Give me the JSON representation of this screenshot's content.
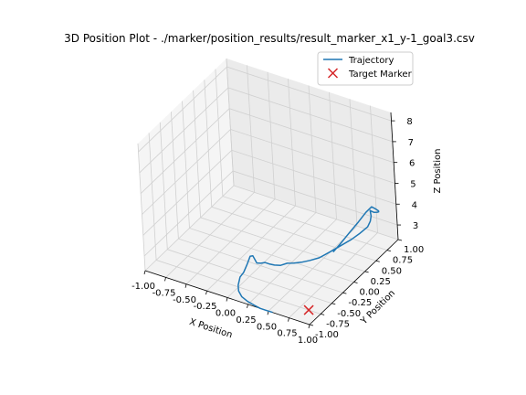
{
  "chart_data": {
    "type": "line",
    "projection": "3d",
    "title": "3D Position Plot - ./marker/position_results/result_marker_x1_y-1_goal3.csv",
    "xlabel": "X Position",
    "ylabel": "Y Position",
    "zlabel": "Z Position",
    "xlim": [
      -1.0,
      1.0
    ],
    "ylim": [
      -1.0,
      1.0
    ],
    "zlim": [
      2.3,
      8.4
    ],
    "x_ticks": [
      "-1.00",
      "-0.75",
      "-0.50",
      "-0.25",
      "0.00",
      "0.25",
      "0.50",
      "0.75",
      "1.00"
    ],
    "y_ticks": [
      "-1.00",
      "-0.75",
      "-0.50",
      "-0.25",
      "0.00",
      "0.25",
      "0.50",
      "0.75",
      "1.00"
    ],
    "z_ticks": [
      "3",
      "4",
      "5",
      "6",
      "7",
      "8"
    ],
    "grid": true,
    "legend_position": "upper right",
    "series": [
      {
        "name": "Trajectory",
        "kind": "line",
        "color": "#1f77b4",
        "x": [
          0.55,
          0.53,
          0.48,
          0.4,
          0.32,
          0.22,
          0.12,
          0.04,
          -0.02,
          -0.06,
          -0.07,
          -0.07,
          -0.06,
          -0.06,
          -0.04,
          0.0,
          0.05,
          0.1,
          0.16,
          0.22,
          0.28,
          0.34,
          0.4,
          0.46,
          0.52,
          0.58,
          0.64,
          0.7,
          0.74,
          0.77,
          0.76,
          0.74,
          0.72,
          0.71,
          0.73,
          0.76,
          0.79,
          0.8,
          0.78,
          0.74,
          0.7,
          0.66,
          0.62,
          0.6,
          0.59
        ],
        "y": [
          -1.0,
          -1.0,
          -1.0,
          -1.0,
          -0.98,
          -0.95,
          -0.9,
          -0.82,
          -0.72,
          -0.6,
          -0.5,
          -0.42,
          -0.36,
          -0.3,
          -0.26,
          -0.24,
          -0.24,
          -0.24,
          -0.23,
          -0.2,
          -0.16,
          -0.12,
          -0.06,
          0.02,
          0.12,
          0.24,
          0.38,
          0.52,
          0.64,
          0.76,
          0.84,
          0.9,
          0.92,
          0.95,
          0.98,
          1.0,
          0.98,
          0.96,
          0.94,
          0.92,
          0.86,
          0.76,
          0.6,
          0.44,
          0.3
        ],
        "z": [
          2.3,
          2.3,
          2.3,
          2.3,
          2.3,
          2.3,
          2.3,
          2.3,
          2.3,
          2.4,
          2.4,
          2.6,
          2.9,
          2.8,
          2.4,
          2.4,
          2.5,
          2.5,
          2.5,
          2.5,
          2.6,
          2.6,
          2.6,
          2.6,
          2.6,
          2.7,
          2.8,
          2.9,
          3.0,
          3.1,
          3.2,
          3.3,
          3.5,
          3.4,
          3.3,
          3.3,
          3.4,
          3.5,
          3.6,
          3.7,
          3.5,
          3.2,
          2.9,
          2.7,
          2.6
        ]
      },
      {
        "name": "Target Marker",
        "kind": "scatter",
        "marker": "x",
        "color": "#d62728",
        "x": [
          1.0
        ],
        "y": [
          -1.0
        ],
        "z": [
          3.0
        ]
      }
    ]
  }
}
